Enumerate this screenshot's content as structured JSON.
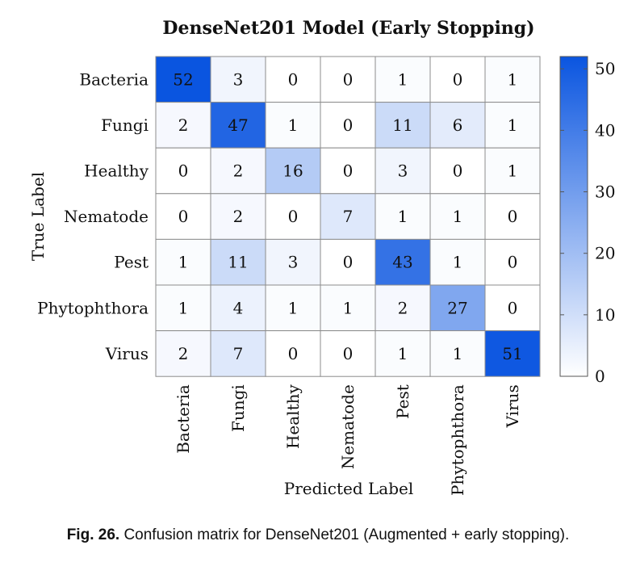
{
  "chart_data": {
    "type": "heatmap",
    "title": "DenseNet201 Model (Early Stopping)",
    "xlabel": "Predicted Label",
    "ylabel": "True Label",
    "rows": [
      "Bacteria",
      "Fungi",
      "Healthy",
      "Nematode",
      "Pest",
      "Phytophthora",
      "Virus"
    ],
    "columns": [
      "Bacteria",
      "Fungi",
      "Healthy",
      "Nematode",
      "Pest",
      "Phytophthora",
      "Virus"
    ],
    "values": [
      [
        52,
        3,
        0,
        0,
        1,
        0,
        1
      ],
      [
        2,
        47,
        1,
        0,
        11,
        6,
        1
      ],
      [
        0,
        2,
        16,
        0,
        3,
        0,
        1
      ],
      [
        0,
        2,
        0,
        7,
        1,
        1,
        0
      ],
      [
        1,
        11,
        3,
        0,
        43,
        1,
        0
      ],
      [
        1,
        4,
        1,
        1,
        2,
        27,
        0
      ],
      [
        2,
        7,
        0,
        0,
        1,
        1,
        51
      ]
    ],
    "colorbar": {
      "min": 0,
      "max": 52,
      "ticks": [
        0,
        10,
        20,
        30,
        40,
        50
      ]
    },
    "colors": {
      "low": "#ffffff",
      "high": "#0a55e0"
    }
  },
  "caption": {
    "label": "Fig. 26.",
    "text": "Confusion matrix for DenseNet201 (Augmented + early stopping)."
  }
}
